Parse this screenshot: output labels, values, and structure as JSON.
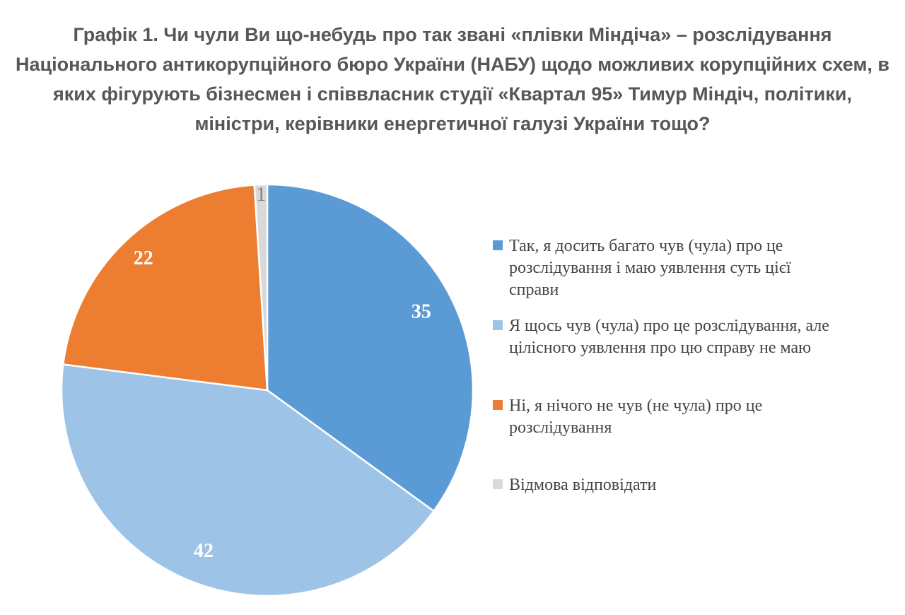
{
  "title": {
    "lines": [
      "Графік 1. Чи чули Ви що-небудь про так звані «плівки Міндіча» – розслідування",
      "Національного антикорупційного бюро України (НАБУ) щодо можливих корупційних схем, в",
      "яких фігурують бізнесмен і співвласник студії «Квартал 95» Тимур Міндіч, політики,",
      "міністри, керівники енергетичної галузі України тощо?"
    ],
    "color": "#575755"
  },
  "chart_data": {
    "type": "pie",
    "title": "Графік 1. Чи чули Ви що-небудь про так звані «плівки Міндіча» – розслідування Національного антикорупційного бюро України (НАБУ) щодо можливих корупційних схем, в яких фігурують бізнесмен і співвласник студії «Квартал 95» Тимур Міндіч, політики, міністри, керівники енергетичної галузі України тощо?",
    "values_unit": "percent",
    "start_angle_deg": 0,
    "direction": "clockwise",
    "legend_position": "right",
    "slices": [
      {
        "legend": "Так, я досить багато чув (чула) про це розслідування і маю уявлення суть цієї справи",
        "value": 35,
        "color": "#5B9BD5",
        "label_color": "#FFFFFF"
      },
      {
        "legend": "Я щось чув (чула) про це розслідування, але цілісного уявлення про цю справу не маю",
        "value": 42,
        "color": "#9DC3E6",
        "label_color": "#FFFFFF"
      },
      {
        "legend": "Ні, я нічого не чув (не чула) про це розслідування",
        "value": 22,
        "color": "#ED7D31",
        "label_color": "#FFFFFF"
      },
      {
        "legend": "Відмова відповідати",
        "value": 1,
        "color": "#D9D9D9",
        "label_color": "#7F7F7F"
      }
    ]
  }
}
